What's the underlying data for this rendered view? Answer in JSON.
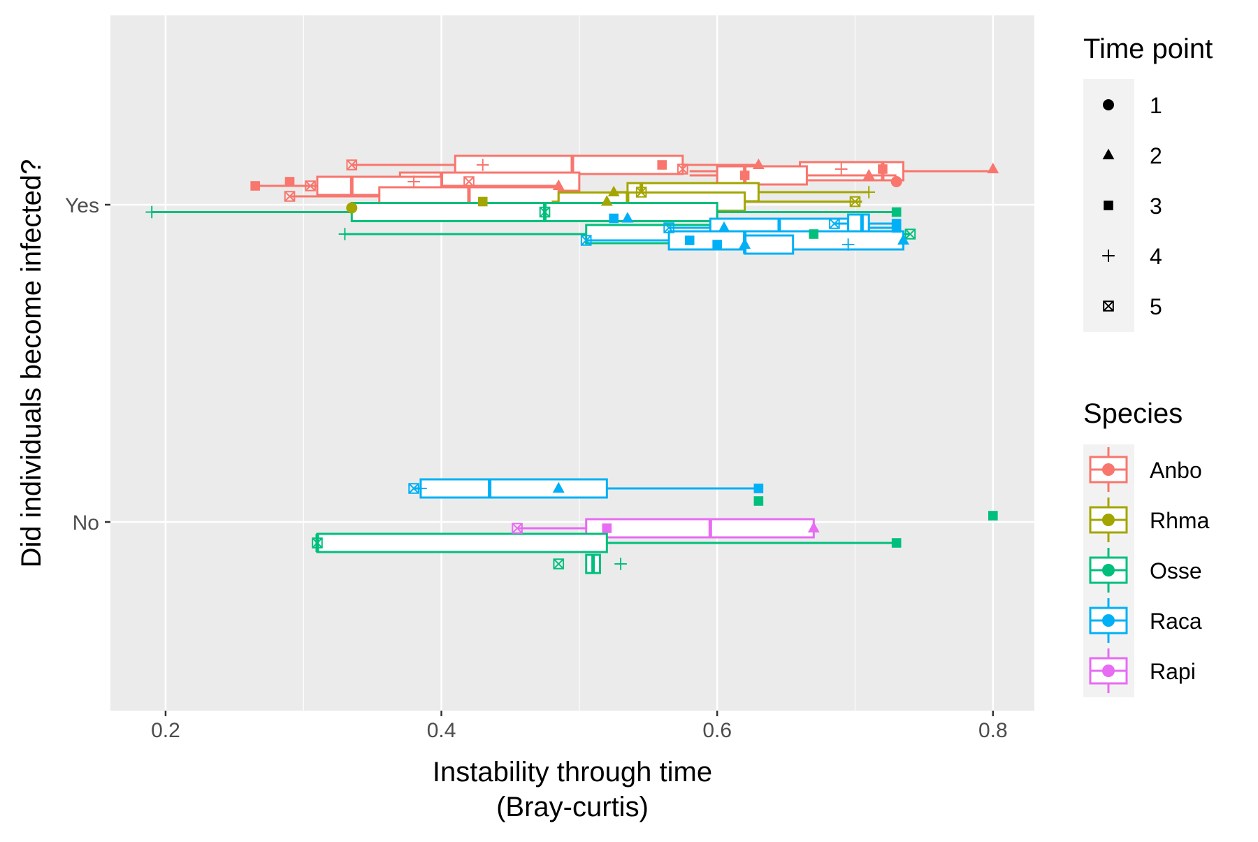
{
  "chart_data": {
    "type": "boxplot",
    "title": "",
    "xlabel_line1": "Instability through time",
    "xlabel_line2": "(Bray-curtis)",
    "ylabel": "Did individuals become infected?",
    "xlim": [
      0.16,
      0.83
    ],
    "x_ticks": [
      0.2,
      0.4,
      0.6,
      0.8
    ],
    "x_tick_labels": [
      "0.2",
      "0.4",
      "0.6",
      "0.8"
    ],
    "y_categories": [
      "Yes",
      "No"
    ],
    "grid": true,
    "legend_placement": "right",
    "legend_timepoint": {
      "title": "Time point",
      "items": [
        {
          "label": "1",
          "shape": "circle"
        },
        {
          "label": "2",
          "shape": "triangle"
        },
        {
          "label": "3",
          "shape": "square"
        },
        {
          "label": "4",
          "shape": "plus"
        },
        {
          "label": "5",
          "shape": "boxx"
        }
      ]
    },
    "legend_species": {
      "title": "Species",
      "items": [
        {
          "label": "Anbo",
          "color": "#F8766D"
        },
        {
          "label": "Rhma",
          "color": "#A3A500"
        },
        {
          "label": "Osse",
          "color": "#00BF7D"
        },
        {
          "label": "Raca",
          "color": "#00B0F6"
        },
        {
          "label": "Rapi",
          "color": "#E76BF3"
        }
      ]
    },
    "boxes": [
      {
        "species": "Anbo",
        "infected": "Yes",
        "offset": 0.19,
        "min": 0.335,
        "q1": 0.41,
        "median": 0.495,
        "q3": 0.575,
        "max": 0.63
      },
      {
        "species": "Anbo",
        "infected": "Yes",
        "offset": 0.16,
        "min": 0.58,
        "q1": 0.66,
        "median": 0.72,
        "q3": 0.735,
        "max": 0.8
      },
      {
        "species": "Anbo",
        "infected": "Yes",
        "offset": 0.14,
        "min": 0.58,
        "q1": 0.6,
        "median": 0.62,
        "q3": 0.665,
        "max": 0.73
      },
      {
        "species": "Anbo",
        "infected": "Yes",
        "offset": 0.11,
        "min": 0.37,
        "q1": 0.37,
        "median": 0.4,
        "q3": 0.5,
        "max": 0.5
      },
      {
        "species": "Anbo",
        "infected": "Yes",
        "offset": 0.09,
        "min": 0.265,
        "q1": 0.31,
        "median": 0.335,
        "q3": 0.4,
        "max": 0.485
      },
      {
        "species": "Anbo",
        "infected": "Yes",
        "offset": 0.04,
        "min": 0.29,
        "q1": 0.355,
        "median": 0.42,
        "q3": 0.485,
        "max": 0.485
      },
      {
        "species": "Rhma",
        "infected": "Yes",
        "offset": 0.06,
        "min": 0.525,
        "q1": 0.535,
        "median": 0.545,
        "q3": 0.63,
        "max": 0.71
      },
      {
        "species": "Rhma",
        "infected": "Yes",
        "offset": 0.015,
        "min": 0.48,
        "q1": 0.485,
        "median": 0.535,
        "q3": 0.62,
        "max": 0.705
      },
      {
        "species": "Osse",
        "infected": "Yes",
        "offset": -0.035,
        "min": 0.19,
        "q1": 0.335,
        "median": 0.475,
        "q3": 0.6,
        "max": 0.73
      },
      {
        "species": "Osse",
        "infected": "Yes",
        "offset": -0.14,
        "min": 0.33,
        "q1": 0.505,
        "median": 0.6,
        "q3": 0.71,
        "max": 0.74
      },
      {
        "species": "Raca",
        "infected": "Yes",
        "offset": -0.11,
        "min": 0.565,
        "q1": 0.595,
        "median": 0.645,
        "q3": 0.695,
        "max": 0.73
      },
      {
        "species": "Raca",
        "infected": "Yes",
        "offset": -0.09,
        "min": 0.685,
        "q1": 0.695,
        "median": 0.705,
        "q3": 0.71,
        "max": 0.73
      },
      {
        "species": "Raca",
        "infected": "Yes",
        "offset": -0.17,
        "min": 0.505,
        "q1": 0.565,
        "median": 0.62,
        "q3": 0.735,
        "max": 0.735
      },
      {
        "species": "Raca",
        "infected": "Yes",
        "offset": -0.19,
        "min": 0.62,
        "q1": 0.62,
        "median": 0.62,
        "q3": 0.655,
        "max": 0.655
      },
      {
        "species": "Raca",
        "infected": "No",
        "offset": 0.16,
        "min": 0.38,
        "q1": 0.385,
        "median": 0.435,
        "q3": 0.52,
        "max": 0.63
      },
      {
        "species": "Rapi",
        "infected": "No",
        "offset": -0.03,
        "min": 0.455,
        "q1": 0.505,
        "median": 0.595,
        "q3": 0.67,
        "max": 0.67
      },
      {
        "species": "Osse",
        "infected": "No",
        "offset": -0.1,
        "min": 0.31,
        "q1": 0.31,
        "median": 0.31,
        "q3": 0.52,
        "max": 0.73
      },
      {
        "species": "Osse",
        "infected": "No",
        "offset": -0.2,
        "min": 0.505,
        "q1": 0.505,
        "median": 0.51,
        "q3": 0.515,
        "max": 0.515
      }
    ],
    "points": [
      {
        "species": "Anbo",
        "infected": "Yes",
        "offset": 0.19,
        "x": 0.335,
        "time": 5
      },
      {
        "species": "Anbo",
        "infected": "Yes",
        "offset": 0.19,
        "x": 0.43,
        "time": 4
      },
      {
        "species": "Anbo",
        "infected": "Yes",
        "offset": 0.19,
        "x": 0.56,
        "time": 3
      },
      {
        "species": "Anbo",
        "infected": "Yes",
        "offset": 0.19,
        "x": 0.63,
        "time": 2
      },
      {
        "species": "Anbo",
        "infected": "Yes",
        "offset": 0.17,
        "x": 0.575,
        "time": 5
      },
      {
        "species": "Anbo",
        "infected": "Yes",
        "offset": 0.17,
        "x": 0.69,
        "time": 4
      },
      {
        "species": "Anbo",
        "infected": "Yes",
        "offset": 0.17,
        "x": 0.72,
        "time": 3
      },
      {
        "species": "Anbo",
        "infected": "Yes",
        "offset": 0.17,
        "x": 0.8,
        "time": 2
      },
      {
        "species": "Anbo",
        "infected": "Yes",
        "offset": 0.14,
        "x": 0.62,
        "time": 3
      },
      {
        "species": "Anbo",
        "infected": "Yes",
        "offset": 0.14,
        "x": 0.71,
        "time": 2
      },
      {
        "species": "Anbo",
        "infected": "Yes",
        "offset": 0.11,
        "x": 0.73,
        "time": 1
      },
      {
        "species": "Anbo",
        "infected": "Yes",
        "offset": 0.11,
        "x": 0.38,
        "time": 4
      },
      {
        "species": "Anbo",
        "infected": "Yes",
        "offset": 0.11,
        "x": 0.42,
        "time": 5
      },
      {
        "species": "Anbo",
        "infected": "Yes",
        "offset": 0.11,
        "x": 0.29,
        "time": 3
      },
      {
        "species": "Anbo",
        "infected": "Yes",
        "offset": 0.09,
        "x": 0.265,
        "time": 3
      },
      {
        "species": "Anbo",
        "infected": "Yes",
        "offset": 0.09,
        "x": 0.305,
        "time": 5
      },
      {
        "species": "Anbo",
        "infected": "Yes",
        "offset": 0.09,
        "x": 0.485,
        "time": 2
      },
      {
        "species": "Anbo",
        "infected": "Yes",
        "offset": 0.04,
        "x": 0.29,
        "time": 5
      },
      {
        "species": "Rhma",
        "infected": "Yes",
        "offset": 0.06,
        "x": 0.525,
        "time": 2
      },
      {
        "species": "Rhma",
        "infected": "Yes",
        "offset": 0.06,
        "x": 0.545,
        "time": 5
      },
      {
        "species": "Rhma",
        "infected": "Yes",
        "offset": 0.06,
        "x": 0.71,
        "time": 4
      },
      {
        "species": "Rhma",
        "infected": "Yes",
        "offset": 0.015,
        "x": 0.43,
        "time": 3
      },
      {
        "species": "Rhma",
        "infected": "Yes",
        "offset": 0.015,
        "x": 0.52,
        "time": 2
      },
      {
        "species": "Rhma",
        "infected": "Yes",
        "offset": 0.015,
        "x": 0.7,
        "time": 5
      },
      {
        "species": "Rhma",
        "infected": "Yes",
        "offset": -0.015,
        "x": 0.335,
        "time": 1
      },
      {
        "species": "Osse",
        "infected": "Yes",
        "offset": -0.035,
        "x": 0.19,
        "time": 4
      },
      {
        "species": "Osse",
        "infected": "Yes",
        "offset": -0.035,
        "x": 0.475,
        "time": 5
      },
      {
        "species": "Osse",
        "infected": "Yes",
        "offset": -0.035,
        "x": 0.73,
        "time": 3
      },
      {
        "species": "Osse",
        "infected": "Yes",
        "offset": -0.14,
        "x": 0.33,
        "time": 4
      },
      {
        "species": "Osse",
        "infected": "Yes",
        "offset": -0.14,
        "x": 0.67,
        "time": 3
      },
      {
        "species": "Osse",
        "infected": "Yes",
        "offset": -0.14,
        "x": 0.74,
        "time": 5
      },
      {
        "species": "Raca",
        "infected": "Yes",
        "offset": -0.065,
        "x": 0.525,
        "time": 3
      },
      {
        "species": "Raca",
        "infected": "Yes",
        "offset": -0.065,
        "x": 0.535,
        "time": 2
      },
      {
        "species": "Raca",
        "infected": "Yes",
        "offset": -0.09,
        "x": 0.685,
        "time": 5
      },
      {
        "species": "Raca",
        "infected": "Yes",
        "offset": -0.09,
        "x": 0.73,
        "time": 3
      },
      {
        "species": "Raca",
        "infected": "Yes",
        "offset": -0.11,
        "x": 0.565,
        "time": 5
      },
      {
        "species": "Raca",
        "infected": "Yes",
        "offset": -0.11,
        "x": 0.605,
        "time": 2
      },
      {
        "species": "Raca",
        "infected": "Yes",
        "offset": -0.11,
        "x": 0.73,
        "time": 3
      },
      {
        "species": "Raca",
        "infected": "Yes",
        "offset": -0.17,
        "x": 0.505,
        "time": 5
      },
      {
        "species": "Raca",
        "infected": "Yes",
        "offset": -0.17,
        "x": 0.58,
        "time": 3
      },
      {
        "species": "Raca",
        "infected": "Yes",
        "offset": -0.17,
        "x": 0.735,
        "time": 2
      },
      {
        "species": "Raca",
        "infected": "Yes",
        "offset": -0.19,
        "x": 0.6,
        "time": 3
      },
      {
        "species": "Raca",
        "infected": "Yes",
        "offset": -0.19,
        "x": 0.62,
        "time": 2
      },
      {
        "species": "Raca",
        "infected": "Yes",
        "offset": -0.19,
        "x": 0.695,
        "time": 4
      },
      {
        "species": "Raca",
        "infected": "No",
        "offset": 0.16,
        "x": 0.38,
        "time": 5
      },
      {
        "species": "Raca",
        "infected": "No",
        "offset": 0.16,
        "x": 0.385,
        "time": 4
      },
      {
        "species": "Raca",
        "infected": "No",
        "offset": 0.16,
        "x": 0.485,
        "time": 2
      },
      {
        "species": "Raca",
        "infected": "No",
        "offset": 0.16,
        "x": 0.63,
        "time": 3
      },
      {
        "species": "Osse",
        "infected": "No",
        "offset": 0.1,
        "x": 0.63,
        "time": 3
      },
      {
        "species": "Osse",
        "infected": "No",
        "offset": 0.03,
        "x": 0.8,
        "time": 3
      },
      {
        "species": "Rapi",
        "infected": "No",
        "offset": -0.03,
        "x": 0.455,
        "time": 5
      },
      {
        "species": "Rapi",
        "infected": "No",
        "offset": -0.03,
        "x": 0.52,
        "time": 3
      },
      {
        "species": "Rapi",
        "infected": "No",
        "offset": -0.03,
        "x": 0.67,
        "time": 2
      },
      {
        "species": "Osse",
        "infected": "No",
        "offset": -0.1,
        "x": 0.31,
        "time": 5
      },
      {
        "species": "Osse",
        "infected": "No",
        "offset": -0.1,
        "x": 0.73,
        "time": 3
      },
      {
        "species": "Osse",
        "infected": "No",
        "offset": -0.2,
        "x": 0.485,
        "time": 5
      },
      {
        "species": "Osse",
        "infected": "No",
        "offset": -0.2,
        "x": 0.53,
        "time": 4
      }
    ]
  }
}
